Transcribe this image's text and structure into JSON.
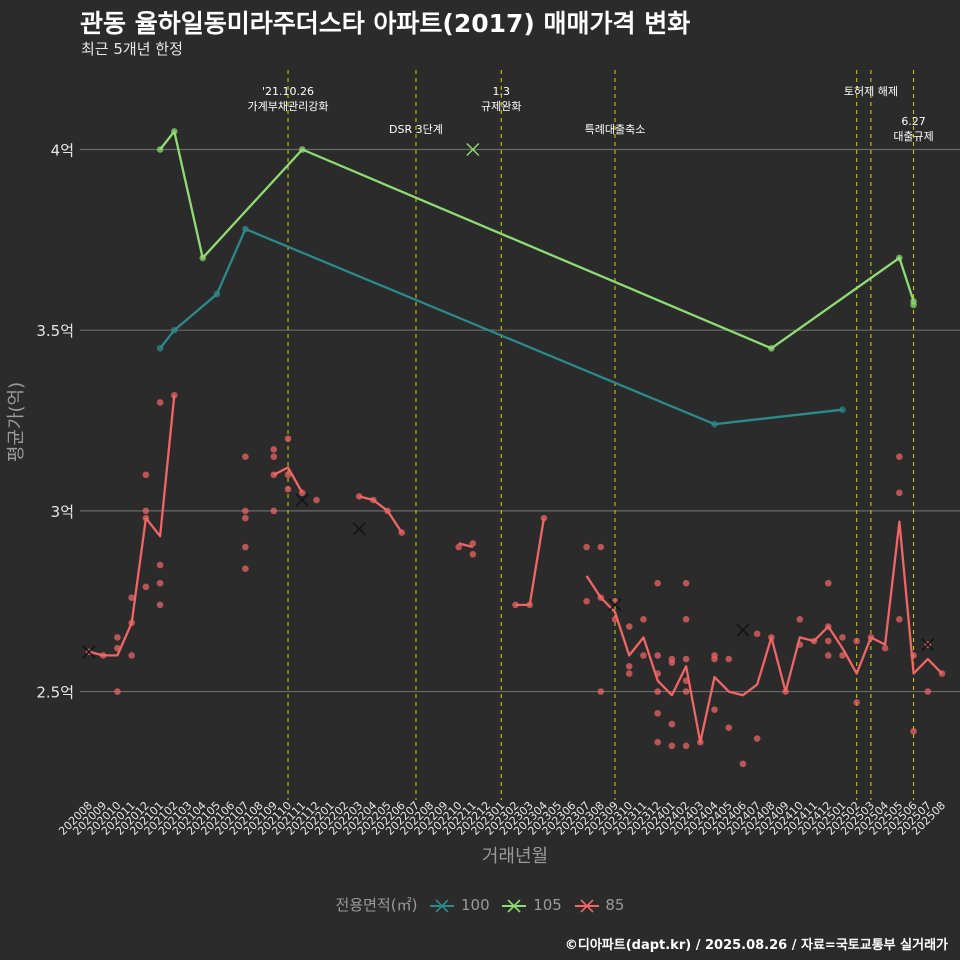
{
  "title": "관동 율하일동미라주더스타 아파트(2017) 매매가격 변화",
  "subtitle": "최근 5개년 한정",
  "caption": "©디아파트(dapt.kr) / 2025.08.26 / 자료=국토교통부 실거래가",
  "chart_data": {
    "type": "line",
    "xlabel": "거래년월",
    "ylabel": "평균가(억)",
    "ylim": [
      2.2,
      4.22
    ],
    "yticks": [
      {
        "value": 2.5,
        "label": "2.5억"
      },
      {
        "value": 3.0,
        "label": "3억"
      },
      {
        "value": 3.5,
        "label": "3.5억"
      },
      {
        "value": 4.0,
        "label": "4억"
      }
    ],
    "x_categories": [
      "202008",
      "202009",
      "202010",
      "202011",
      "202012",
      "202101",
      "202102",
      "202103",
      "202104",
      "202105",
      "202106",
      "202107",
      "202108",
      "202109",
      "202110",
      "202111",
      "202112",
      "202201",
      "202202",
      "202203",
      "202204",
      "202205",
      "202206",
      "202207",
      "202208",
      "202209",
      "202210",
      "202211",
      "202212",
      "202301",
      "202302",
      "202303",
      "202304",
      "202305",
      "202306",
      "202307",
      "202308",
      "202309",
      "202310",
      "202311",
      "202312",
      "202401",
      "202402",
      "202403",
      "202404",
      "202405",
      "202406",
      "202407",
      "202408",
      "202409",
      "202410",
      "202411",
      "202412",
      "202501",
      "202502",
      "202503",
      "202504",
      "202505",
      "202506",
      "202507",
      "202508"
    ],
    "grid": true,
    "legend_title": "전용면적(㎡)",
    "legend_position": "bottom",
    "series": [
      {
        "name": "100",
        "color": "#2a8a8c",
        "line": [
          [
            "202101",
            3.45
          ],
          [
            "202102",
            3.5
          ],
          [
            "202105",
            3.6
          ],
          [
            "202107",
            3.78
          ],
          [
            "202404",
            3.24
          ],
          [
            "202501",
            3.28
          ]
        ],
        "points": [
          [
            "202101",
            3.45
          ],
          [
            "202102",
            3.5
          ],
          [
            "202105",
            3.6
          ],
          [
            "202107",
            3.78
          ],
          [
            "202404",
            3.24
          ],
          [
            "202501",
            3.28
          ]
        ],
        "cancelled": []
      },
      {
        "name": "105",
        "color": "#8fdc74",
        "line": [
          [
            "202101",
            4.0
          ],
          [
            "202102",
            4.05
          ],
          [
            "202104",
            3.7
          ],
          [
            "202111",
            4.0
          ],
          [
            "202408",
            3.45
          ],
          [
            "202505",
            3.7
          ],
          [
            "202506",
            3.58
          ]
        ],
        "points": [
          [
            "202101",
            4.0
          ],
          [
            "202102",
            4.05
          ],
          [
            "202104",
            3.7
          ],
          [
            "202111",
            4.0
          ],
          [
            "202408",
            3.45
          ],
          [
            "202505",
            3.7
          ],
          [
            "202506",
            3.58
          ],
          [
            "202506",
            3.57
          ]
        ],
        "cancelled": [
          [
            "202211",
            4.0
          ]
        ]
      },
      {
        "name": "85",
        "color": "#f06565",
        "line": [
          [
            "202008",
            2.61
          ],
          [
            "202009",
            2.6
          ],
          [
            "202010",
            2.6
          ],
          [
            "202011",
            2.69
          ],
          [
            "202012",
            2.98
          ],
          [
            "202101",
            2.93
          ],
          [
            "202102",
            3.32
          ],
          "gap",
          [
            "202109",
            3.1
          ],
          [
            "202110",
            3.12
          ],
          [
            "202111",
            3.05
          ],
          "gap",
          [
            "202203",
            3.04
          ],
          [
            "202204",
            3.03
          ],
          [
            "202205",
            3.0
          ],
          [
            "202206",
            2.94
          ],
          "gap",
          [
            "202210",
            2.91
          ],
          [
            "202211",
            2.9
          ],
          "gap",
          [
            "202302",
            2.74
          ],
          [
            "202303",
            2.74
          ],
          [
            "202304",
            2.98
          ],
          "gap",
          [
            "202307",
            2.82
          ],
          [
            "202308",
            2.76
          ],
          [
            "202309",
            2.72
          ],
          [
            "202310",
            2.6
          ],
          [
            "202311",
            2.65
          ],
          [
            "202312",
            2.53
          ],
          [
            "202401",
            2.49
          ],
          [
            "202402",
            2.57
          ],
          [
            "202403",
            2.36
          ],
          [
            "202404",
            2.54
          ],
          [
            "202405",
            2.5
          ],
          [
            "202406",
            2.49
          ],
          [
            "202407",
            2.52
          ],
          [
            "202408",
            2.65
          ],
          [
            "202409",
            2.5
          ],
          [
            "202410",
            2.65
          ],
          [
            "202411",
            2.64
          ],
          [
            "202412",
            2.68
          ],
          [
            "202501",
            2.62
          ],
          [
            "202502",
            2.55
          ],
          [
            "202503",
            2.65
          ],
          [
            "202504",
            2.63
          ],
          [
            "202505",
            2.97
          ],
          [
            "202506",
            2.55
          ],
          [
            "202507",
            2.59
          ],
          [
            "202508",
            2.55
          ]
        ],
        "points": [
          [
            "202008",
            2.61
          ],
          [
            "202009",
            2.6
          ],
          [
            "202010",
            2.65
          ],
          [
            "202010",
            2.62
          ],
          [
            "202010",
            2.5
          ],
          [
            "202011",
            2.6
          ],
          [
            "202011",
            2.69
          ],
          [
            "202011",
            2.76
          ],
          [
            "202012",
            3.1
          ],
          [
            "202012",
            3.0
          ],
          [
            "202012",
            2.98
          ],
          [
            "202012",
            2.79
          ],
          [
            "202101",
            3.3
          ],
          [
            "202101",
            2.85
          ],
          [
            "202101",
            2.8
          ],
          [
            "202101",
            2.74
          ],
          [
            "202102",
            3.32
          ],
          [
            "202107",
            3.15
          ],
          [
            "202107",
            3.0
          ],
          [
            "202107",
            2.98
          ],
          [
            "202107",
            2.9
          ],
          [
            "202107",
            2.84
          ],
          [
            "202109",
            3.17
          ],
          [
            "202109",
            3.15
          ],
          [
            "202109",
            3.1
          ],
          [
            "202109",
            3.0
          ],
          [
            "202110",
            3.2
          ],
          [
            "202110",
            3.1
          ],
          [
            "202110",
            3.06
          ],
          [
            "202111",
            3.05
          ],
          [
            "202112",
            3.03
          ],
          [
            "202203",
            3.04
          ],
          [
            "202204",
            3.03
          ],
          [
            "202205",
            3.0
          ],
          [
            "202206",
            2.94
          ],
          [
            "202210",
            2.9
          ],
          [
            "202211",
            2.91
          ],
          [
            "202211",
            2.88
          ],
          [
            "202302",
            2.74
          ],
          [
            "202303",
            2.74
          ],
          [
            "202304",
            2.98
          ],
          [
            "202307",
            2.9
          ],
          [
            "202307",
            2.75
          ],
          [
            "202308",
            2.9
          ],
          [
            "202308",
            2.76
          ],
          [
            "202308",
            2.5
          ],
          [
            "202309",
            2.75
          ],
          [
            "202309",
            2.7
          ],
          [
            "202310",
            2.68
          ],
          [
            "202310",
            2.57
          ],
          [
            "202310",
            2.55
          ],
          [
            "202311",
            2.7
          ],
          [
            "202311",
            2.6
          ],
          [
            "202312",
            2.8
          ],
          [
            "202312",
            2.6
          ],
          [
            "202312",
            2.55
          ],
          [
            "202312",
            2.5
          ],
          [
            "202312",
            2.44
          ],
          [
            "202312",
            2.36
          ],
          [
            "202401",
            2.59
          ],
          [
            "202401",
            2.58
          ],
          [
            "202401",
            2.41
          ],
          [
            "202401",
            2.35
          ],
          [
            "202402",
            2.8
          ],
          [
            "202402",
            2.7
          ],
          [
            "202402",
            2.59
          ],
          [
            "202402",
            2.53
          ],
          [
            "202402",
            2.5
          ],
          [
            "202402",
            2.35
          ],
          [
            "202403",
            2.36
          ],
          [
            "202404",
            2.6
          ],
          [
            "202404",
            2.59
          ],
          [
            "202404",
            2.45
          ],
          [
            "202405",
            2.59
          ],
          [
            "202405",
            2.4
          ],
          [
            "202406",
            2.3
          ],
          [
            "202407",
            2.66
          ],
          [
            "202407",
            2.37
          ],
          [
            "202408",
            2.65
          ],
          [
            "202409",
            2.5
          ],
          [
            "202410",
            2.7
          ],
          [
            "202410",
            2.63
          ],
          [
            "202411",
            2.64
          ],
          [
            "202412",
            2.8
          ],
          [
            "202412",
            2.68
          ],
          [
            "202412",
            2.64
          ],
          [
            "202412",
            2.6
          ],
          [
            "202501",
            2.65
          ],
          [
            "202501",
            2.6
          ],
          [
            "202502",
            2.64
          ],
          [
            "202502",
            2.47
          ],
          [
            "202503",
            2.65
          ],
          [
            "202504",
            2.62
          ],
          [
            "202505",
            3.15
          ],
          [
            "202505",
            3.05
          ],
          [
            "202505",
            2.7
          ],
          [
            "202506",
            2.6
          ],
          [
            "202506",
            2.39
          ],
          [
            "202507",
            2.63
          ],
          [
            "202507",
            2.5
          ],
          [
            "202508",
            2.55
          ]
        ],
        "cancelled": [
          [
            "202008",
            2.61
          ],
          [
            "202111",
            3.03
          ],
          [
            "202203",
            2.95
          ],
          [
            "202309",
            2.74
          ],
          [
            "202406",
            2.67
          ],
          [
            "202507",
            2.63
          ]
        ]
      }
    ],
    "annotations": [
      {
        "x": "202110",
        "lines": [
          "'21.10.26",
          "가계부채관리강화"
        ],
        "row": 1
      },
      {
        "x": "202207",
        "lines": [
          "DSR 3단계"
        ],
        "row": 2
      },
      {
        "x": "202301",
        "lines": [
          "1.3",
          "규제완화"
        ],
        "row": 1
      },
      {
        "x": "202309",
        "lines": [
          "특례대출축소"
        ],
        "row": 2
      },
      {
        "x": "202502",
        "lines": [
          ""
        ],
        "row": 1
      },
      {
        "x": "202503",
        "lines": [
          "토허제 해제"
        ],
        "row": 1
      },
      {
        "x": "202506",
        "lines": [
          "6.27",
          "대출규제"
        ],
        "row": 3
      }
    ]
  }
}
